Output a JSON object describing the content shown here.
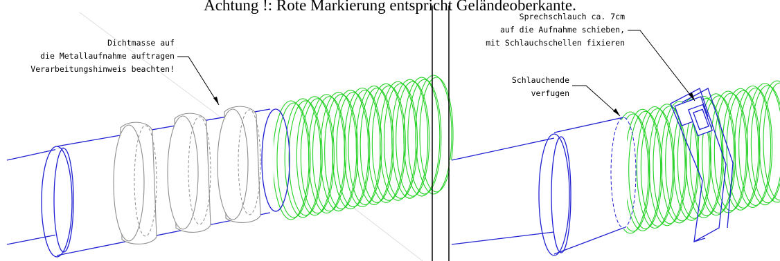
{
  "title": "Achtung !: Rote Markierung entspricht Geländeoberkante.",
  "left_panel": {
    "note_lines": [
      "Dichtmasse auf",
      "die Metallaufnahme auftragen",
      "Verarbeitungshinweis beachten!"
    ]
  },
  "right_panel": {
    "note_top_lines": [
      "Sprechschlauch ca. 7cm",
      "auf die Aufnahme schieben,",
      "mit Schlauchschellen fixieren"
    ],
    "note_mid_lines": [
      "Schlauchende",
      "verfugen"
    ]
  },
  "colors": {
    "pipe": "#1e1ed2",
    "hose": "#22d122",
    "sealant": "#8c8c8c",
    "text": "#000000"
  }
}
